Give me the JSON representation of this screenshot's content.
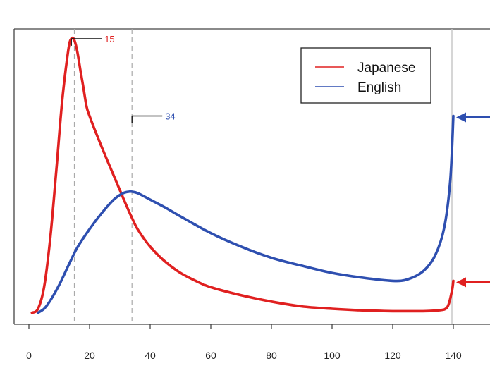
{
  "chart_data": {
    "type": "line",
    "xlim": [
      0,
      140
    ],
    "x_ticks": [
      "0",
      "20",
      "40",
      "60",
      "80",
      "100",
      "120",
      "140"
    ],
    "grid": false,
    "legend_position": "top-right",
    "series": [
      {
        "name": "Japanese",
        "color": "#e02020",
        "x": [
          1,
          3,
          5,
          7,
          9,
          11,
          13,
          14,
          15,
          16,
          17,
          18,
          19,
          20,
          22,
          25,
          28,
          30,
          32,
          34,
          36,
          40,
          45,
          50,
          55,
          60,
          70,
          80,
          90,
          100,
          110,
          120,
          125,
          130,
          135,
          138,
          139.5,
          140
        ],
        "y": [
          0.03,
          0.08,
          0.35,
          0.95,
          1.8,
          2.7,
          3.33,
          3.47,
          3.45,
          3.3,
          3.07,
          2.85,
          2.62,
          2.5,
          2.3,
          2.02,
          1.75,
          1.57,
          1.39,
          1.22,
          1.07,
          0.86,
          0.67,
          0.53,
          0.43,
          0.35,
          0.25,
          0.17,
          0.11,
          0.08,
          0.06,
          0.05,
          0.05,
          0.05,
          0.06,
          0.1,
          0.3,
          0.43
        ]
      },
      {
        "name": "English",
        "color": "#2e4fb0",
        "x": [
          3,
          5,
          7,
          10,
          13,
          16,
          20,
          24,
          28,
          31,
          33,
          34,
          36,
          40,
          45,
          50,
          60,
          70,
          80,
          90,
          100,
          110,
          120,
          125,
          130,
          134,
          137,
          139,
          140
        ],
        "y": [
          0.03,
          0.08,
          0.18,
          0.38,
          0.62,
          0.85,
          1.08,
          1.28,
          1.45,
          1.53,
          1.55,
          1.55,
          1.53,
          1.45,
          1.35,
          1.24,
          1.03,
          0.86,
          0.72,
          0.62,
          0.53,
          0.47,
          0.43,
          0.45,
          0.55,
          0.75,
          1.1,
          1.7,
          2.5
        ]
      }
    ],
    "annotations": [
      {
        "x": 15,
        "label": "15",
        "color": "#e02020"
      },
      {
        "x": 34,
        "label": "34",
        "color": "#2e4fb0"
      }
    ],
    "right_arrows": [
      {
        "series": "English",
        "color": "#2e4fb0"
      },
      {
        "series": "Japanese",
        "color": "#e02020"
      }
    ]
  }
}
